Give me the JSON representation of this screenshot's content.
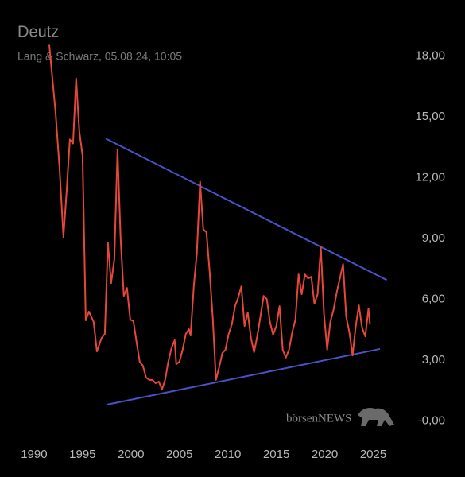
{
  "chart_data": {
    "type": "line",
    "title": "Deutz",
    "subtitle": "Lang & Schwarz, 05.08.24, 10:05",
    "watermark": "börsenNEWS",
    "x": [
      1991.56,
      1992.21,
      1992.62,
      1993.03,
      1993.36,
      1993.69,
      1994.02,
      1994.34,
      1994.67,
      1995.0,
      1995.33,
      1995.66,
      1996.15,
      1996.48,
      1996.97,
      1997.3,
      1997.62,
      1997.95,
      1998.28,
      1998.61,
      1998.93,
      1999.26,
      1999.59,
      1999.92,
      2000.25,
      2000.57,
      2000.9,
      2001.23,
      2001.56,
      2001.89,
      2002.21,
      2002.54,
      2002.87,
      2003.2,
      2003.52,
      2003.85,
      2004.18,
      2004.51,
      2004.67,
      2005.0,
      2005.33,
      2005.66,
      2005.98,
      2006.15,
      2006.48,
      2006.8,
      2007.13,
      2007.46,
      2007.79,
      2008.11,
      2008.44,
      2008.77,
      2009.1,
      2009.43,
      2009.75,
      2010.08,
      2010.41,
      2010.74,
      2011.07,
      2011.39,
      2011.72,
      2012.05,
      2012.38,
      2012.7,
      2013.03,
      2013.36,
      2013.69,
      2014.02,
      2014.34,
      2014.67,
      2015.0,
      2015.33,
      2015.66,
      2015.98,
      2016.31,
      2016.64,
      2016.97,
      2017.3,
      2017.62,
      2017.95,
      2018.28,
      2018.61,
      2018.93,
      2019.26,
      2019.59,
      2019.92,
      2020.25,
      2020.57,
      2020.9,
      2021.23,
      2021.56,
      2021.89,
      2022.21,
      2022.54,
      2022.87,
      2023.2,
      2023.52,
      2023.85,
      2024.18,
      2024.51,
      2024.67
    ],
    "series": [
      {
        "color": "#e5483b",
        "values": [
          18.59,
          15.26,
          12.52,
          9.07,
          11.34,
          13.89,
          13.69,
          16.9,
          14.28,
          13.1,
          4.96,
          5.39,
          4.88,
          3.43,
          4.09,
          4.29,
          8.8,
          6.8,
          7.97,
          13.38,
          8.99,
          6.17,
          6.56,
          5.0,
          4.92,
          3.9,
          2.92,
          2.72,
          2.14,
          2.02,
          2.02,
          1.86,
          1.94,
          1.55,
          2.02,
          2.92,
          3.59,
          3.98,
          2.8,
          2.92,
          3.51,
          4.29,
          4.53,
          4.21,
          6.64,
          8.29,
          11.81,
          9.46,
          9.3,
          7.42,
          5.07,
          2.02,
          2.65,
          3.35,
          3.51,
          4.29,
          4.76,
          5.66,
          6.09,
          6.64,
          4.68,
          5.35,
          4.09,
          3.39,
          4.17,
          5.15,
          6.17,
          6.01,
          4.88,
          4.25,
          4.68,
          5.66,
          3.51,
          3.12,
          3.51,
          4.37,
          5.0,
          7.23,
          6.25,
          7.23,
          7.03,
          7.11,
          5.78,
          6.25,
          8.6,
          5.27,
          3.51,
          4.88,
          5.47,
          6.33,
          7.03,
          7.74,
          5.15,
          4.37,
          3.23,
          4.68,
          5.7,
          4.6,
          4.17,
          5.54,
          4.76
        ]
      }
    ],
    "trendlines": [
      {
        "color": "#4a52c9",
        "x": [
          1997.4,
          2026.4
        ],
        "y": [
          13.93,
          6.95
        ]
      },
      {
        "color": "#4a52c9",
        "x": [
          1997.5,
          2025.7
        ],
        "y": [
          0.8,
          3.55
        ]
      }
    ],
    "xlim": [
      1987.3,
      2027.5
    ],
    "ylim": [
      -1.2,
      19.2
    ],
    "xticks": [
      1990,
      1995,
      2000,
      2005,
      2010,
      2015,
      2020,
      2025
    ],
    "yticks": [
      {
        "value": 0,
        "label": "-0,00"
      },
      {
        "value": 3,
        "label": "3,00"
      },
      {
        "value": 6,
        "label": "6,00"
      },
      {
        "value": 9,
        "label": "9,00"
      },
      {
        "value": 12,
        "label": "12,00"
      },
      {
        "value": 15,
        "label": "15,00"
      },
      {
        "value": 18,
        "label": "18,00"
      }
    ],
    "grid": false
  }
}
